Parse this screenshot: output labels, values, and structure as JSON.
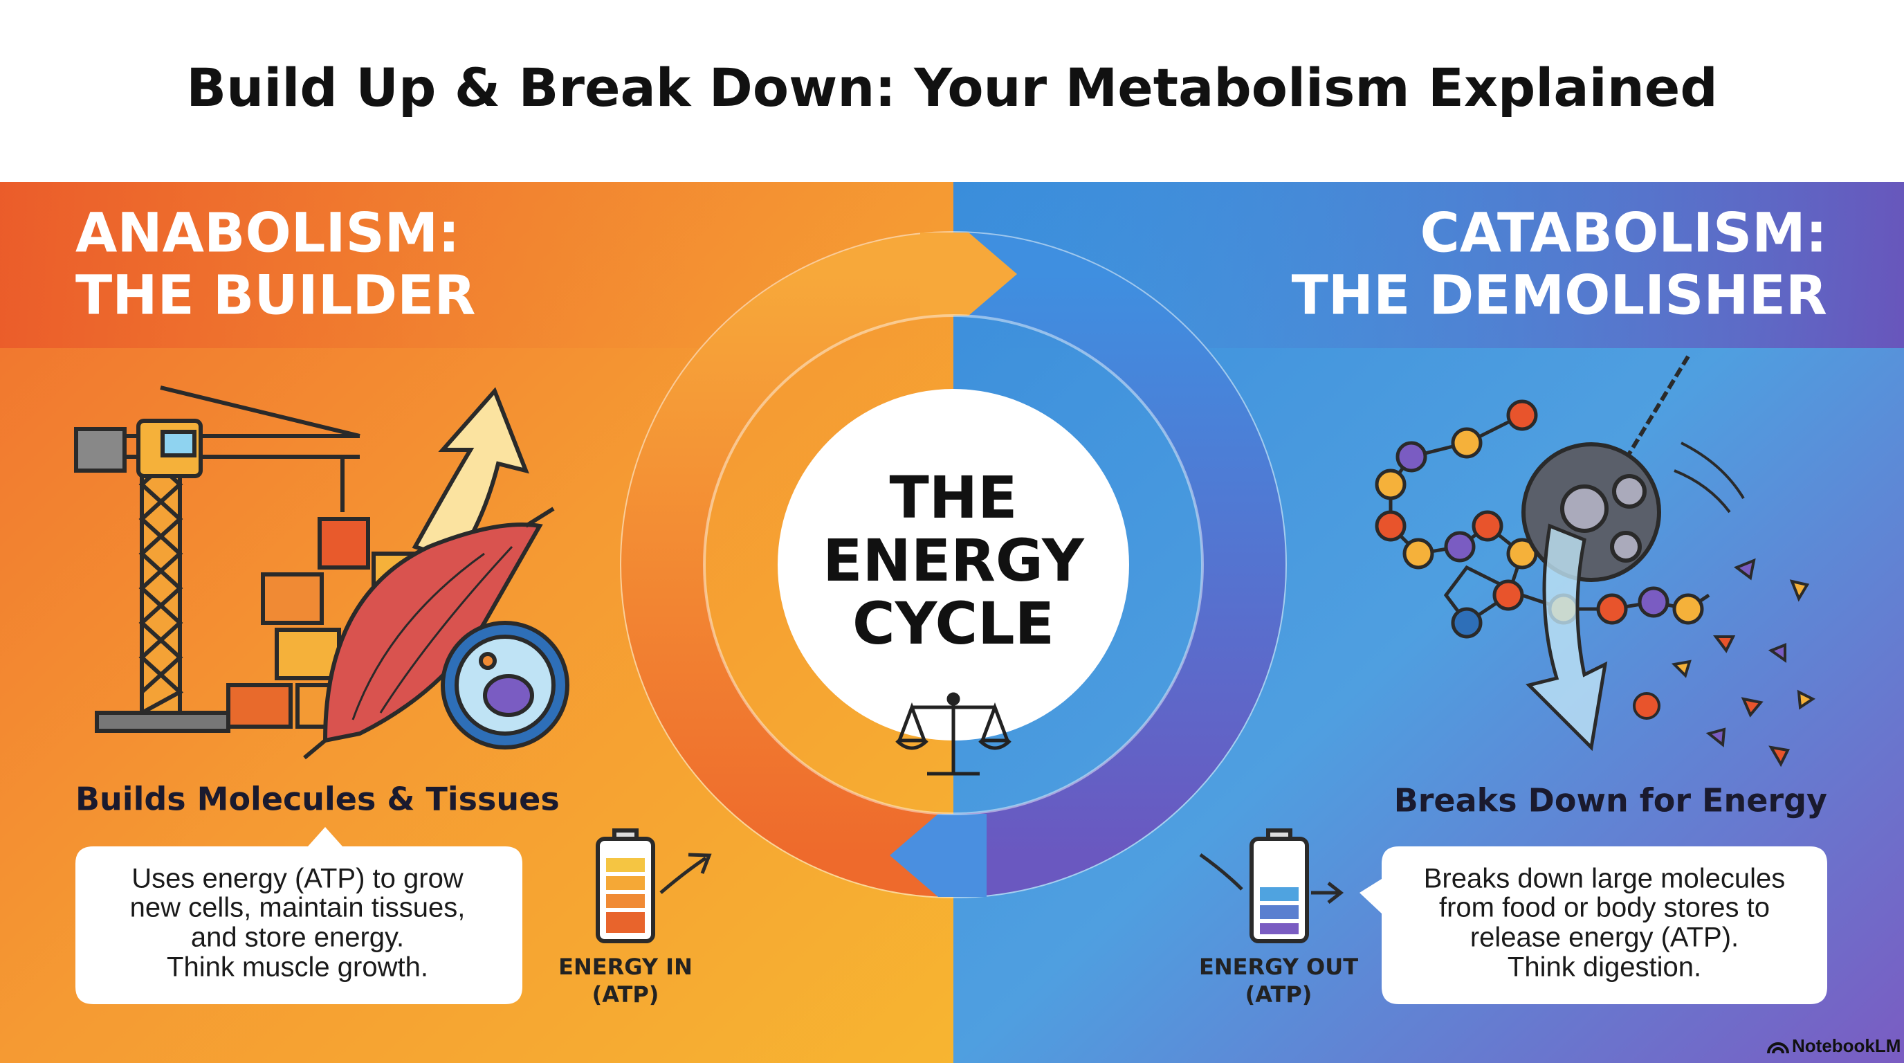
{
  "header": {
    "title": "Build Up & Break Down: Your Metabolism Explained"
  },
  "anabolism": {
    "heading": [
      "ANABOLISM:",
      "THE BUILDER"
    ],
    "subtitle": "Builds Molecules & Tissues",
    "description": [
      "Uses energy (ATP) to grow",
      "new cells, maintain tissues,",
      "and store energy.",
      "Think muscle growth."
    ],
    "energy_label": [
      "ENERGY IN",
      "(ATP)"
    ]
  },
  "center": {
    "label": [
      "THE",
      "ENERGY",
      "CYCLE"
    ]
  },
  "catabolism": {
    "heading": [
      "CATABOLISM:",
      "THE DEMOLISHER"
    ],
    "subtitle": "Breaks Down for Energy",
    "description": [
      "Breaks down large molecules",
      "from food or body stores to",
      "release energy (ATP).",
      "Think digestion."
    ],
    "energy_label": [
      "ENERGY OUT",
      "(ATP)"
    ]
  },
  "footer": {
    "brand": "NotebookLM"
  }
}
